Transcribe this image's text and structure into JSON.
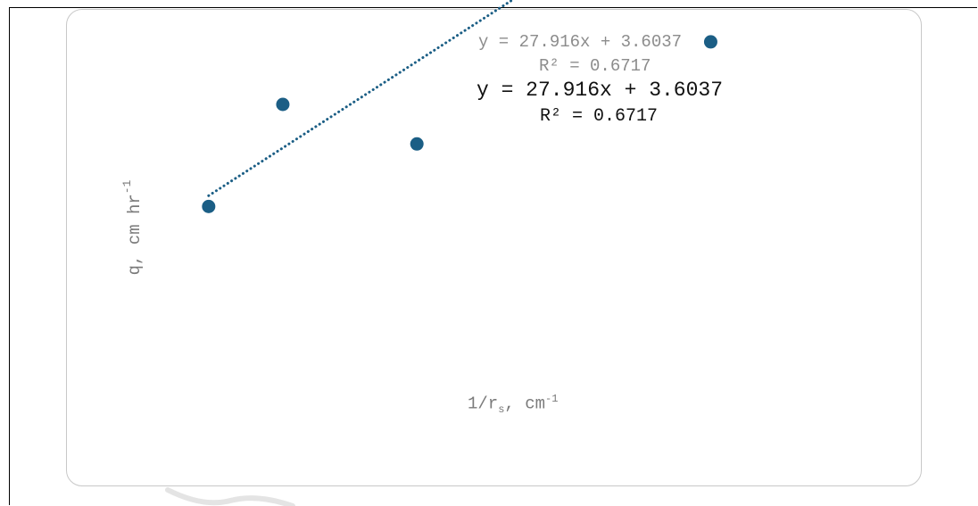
{
  "chart_data": {
    "type": "scatter",
    "title": "",
    "ylabel_main": "q, cm hr",
    "ylabel_exp": "-1",
    "xlabel_main": "1/r",
    "xlabel_sub": "s",
    "xlabel_rest": ", cm",
    "xlabel_exp": "-1",
    "series": [
      {
        "points": [
          {
            "x": 0.01,
            "y": 3.85
          },
          {
            "x": 0.0152,
            "y": 4.16
          },
          {
            "x": 0.0246,
            "y": 4.04
          },
          {
            "x": 0.0452,
            "y": 4.35
          }
        ],
        "color": "#1b5e85"
      }
    ],
    "trendline": {
      "slope": 27.916,
      "intercept": 3.6037,
      "x_range": [
        0.01,
        0.0452
      ],
      "style": "dotted",
      "color": "#1b5e85"
    },
    "annotations": {
      "equation_faded": "y = 27.916x + 3.6037",
      "r2_faded": "R² = 0.6717",
      "equation": "y = 27.916x + 3.6037",
      "r2": "R² = 0.6717"
    },
    "xlim": [
      0.0,
      0.06
    ],
    "ylim": [
      3.0,
      4.45
    ],
    "grid": false,
    "legend": "none"
  }
}
